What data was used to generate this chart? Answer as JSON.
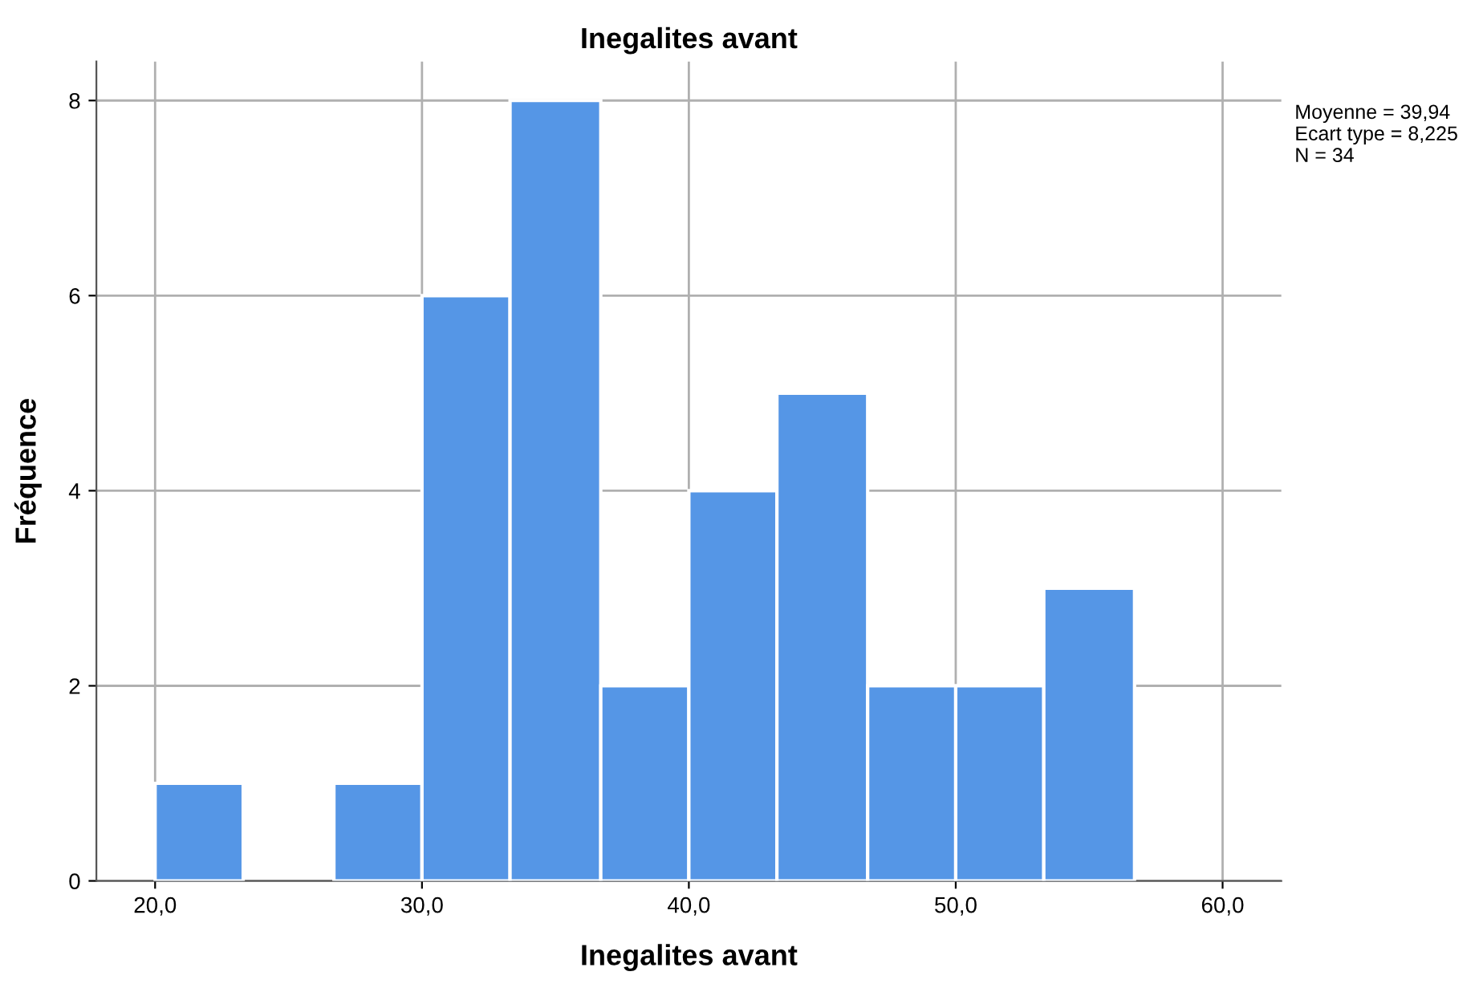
{
  "chart_data": {
    "type": "histogram",
    "title": "Inegalites avant",
    "xlabel": "Inegalites avant",
    "ylabel": "Fréquence",
    "bins": [
      20,
      23.3,
      26.7,
      30,
      33.3,
      36.7,
      40,
      43.3,
      46.7,
      50,
      53.3,
      56.7
    ],
    "values": [
      1,
      0,
      1,
      6,
      8,
      2,
      4,
      5,
      2,
      2,
      3
    ],
    "color": "#5596e6",
    "xlim": [
      17.8,
      62.2
    ],
    "ylim": [
      0,
      8.4
    ],
    "xticks": [
      {
        "value": 20,
        "label": "20,0"
      },
      {
        "value": 30,
        "label": "30,0"
      },
      {
        "value": 40,
        "label": "40,0"
      },
      {
        "value": 50,
        "label": "50,0"
      },
      {
        "value": 60,
        "label": "60,0"
      }
    ],
    "yticks": [
      0,
      2,
      4,
      6,
      8
    ],
    "grid": true,
    "annotations": [
      "Moyenne = 39,94\nEcart type = 8,225\nN = 34"
    ]
  }
}
